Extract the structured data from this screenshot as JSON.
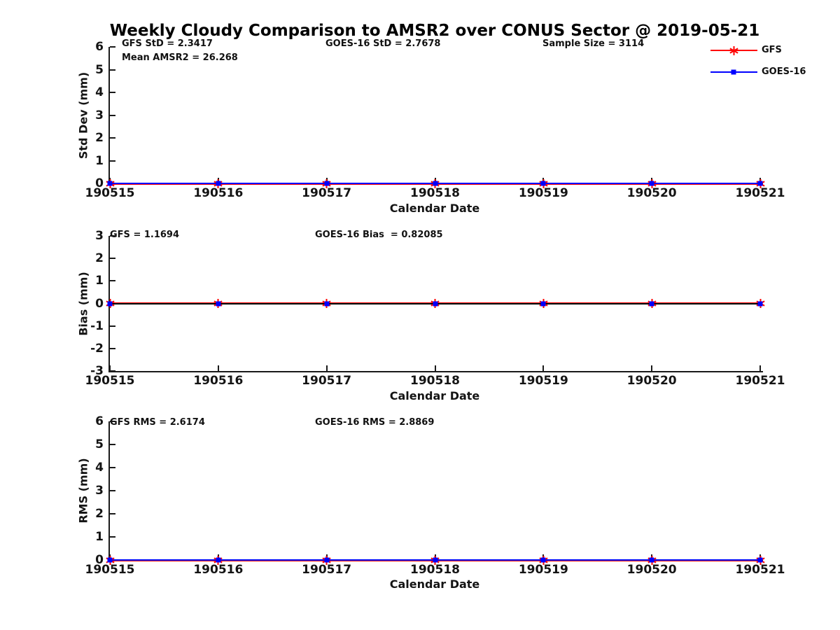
{
  "title": "Weekly Cloudy Comparison to AMSR2 over CONUS Sector @ 2019-05-21",
  "legend": {
    "position": "top-right",
    "entries": [
      {
        "label": "GFS",
        "color": "#ff0000",
        "marker": "star"
      },
      {
        "label": "GOES-16",
        "color": "#0000ff",
        "marker": "square"
      }
    ]
  },
  "colors": {
    "gfs": "#ff0000",
    "goes16": "#0000ff",
    "axis": "#1a1a1a",
    "bias_zero_line": "#000000"
  },
  "chart_data": [
    {
      "type": "line",
      "title": "",
      "xlabel": "Calendar Date",
      "ylabel": "Std Dev (mm)",
      "ylim": [
        0,
        6
      ],
      "ytick_step": 1,
      "grid": false,
      "categories": [
        "190515",
        "190516",
        "190517",
        "190518",
        "190519",
        "190520",
        "190521"
      ],
      "series": [
        {
          "name": "GFS",
          "color": "#ff0000",
          "marker": "star",
          "values": [
            0,
            0,
            0,
            0,
            0,
            0,
            0
          ]
        },
        {
          "name": "GOES-16",
          "color": "#0000ff",
          "marker": "square",
          "values": [
            0,
            0,
            0,
            0,
            0,
            0,
            0
          ]
        }
      ],
      "zero_line": false,
      "annotations": [
        "GFS StD = 2.3417",
        "Mean AMSR2 = 26.268",
        "GOES-16 StD = 2.7678",
        "Sample Size = 3114"
      ]
    },
    {
      "type": "line",
      "title": "",
      "xlabel": "Calendar Date",
      "ylabel": "Bias (mm)",
      "ylim": [
        -3,
        3
      ],
      "ytick_step": 1,
      "grid": false,
      "categories": [
        "190515",
        "190516",
        "190517",
        "190518",
        "190519",
        "190520",
        "190521"
      ],
      "series": [
        {
          "name": "GFS",
          "color": "#ff0000",
          "marker": "star",
          "values": [
            0,
            0,
            0,
            0,
            0,
            0,
            0
          ]
        },
        {
          "name": "GOES-16",
          "color": "#0000ff",
          "marker": "square",
          "values": [
            0,
            0,
            0,
            0,
            0,
            0,
            0
          ]
        }
      ],
      "zero_line": true,
      "annotations": [
        "GFS = 1.1694",
        "GOES-16 Bias  = 0.82085"
      ]
    },
    {
      "type": "line",
      "title": "",
      "xlabel": "Calendar Date",
      "ylabel": "RMS (mm)",
      "ylim": [
        0,
        6
      ],
      "ytick_step": 1,
      "grid": false,
      "categories": [
        "190515",
        "190516",
        "190517",
        "190518",
        "190519",
        "190520",
        "190521"
      ],
      "series": [
        {
          "name": "GFS",
          "color": "#ff0000",
          "marker": "star",
          "values": [
            0,
            0,
            0,
            0,
            0,
            0,
            0
          ]
        },
        {
          "name": "GOES-16",
          "color": "#0000ff",
          "marker": "square",
          "values": [
            0,
            0,
            0,
            0,
            0,
            0,
            0
          ]
        }
      ],
      "zero_line": false,
      "annotations": [
        "GFS RMS = 2.6174",
        "GOES-16 RMS = 2.8869"
      ]
    }
  ]
}
